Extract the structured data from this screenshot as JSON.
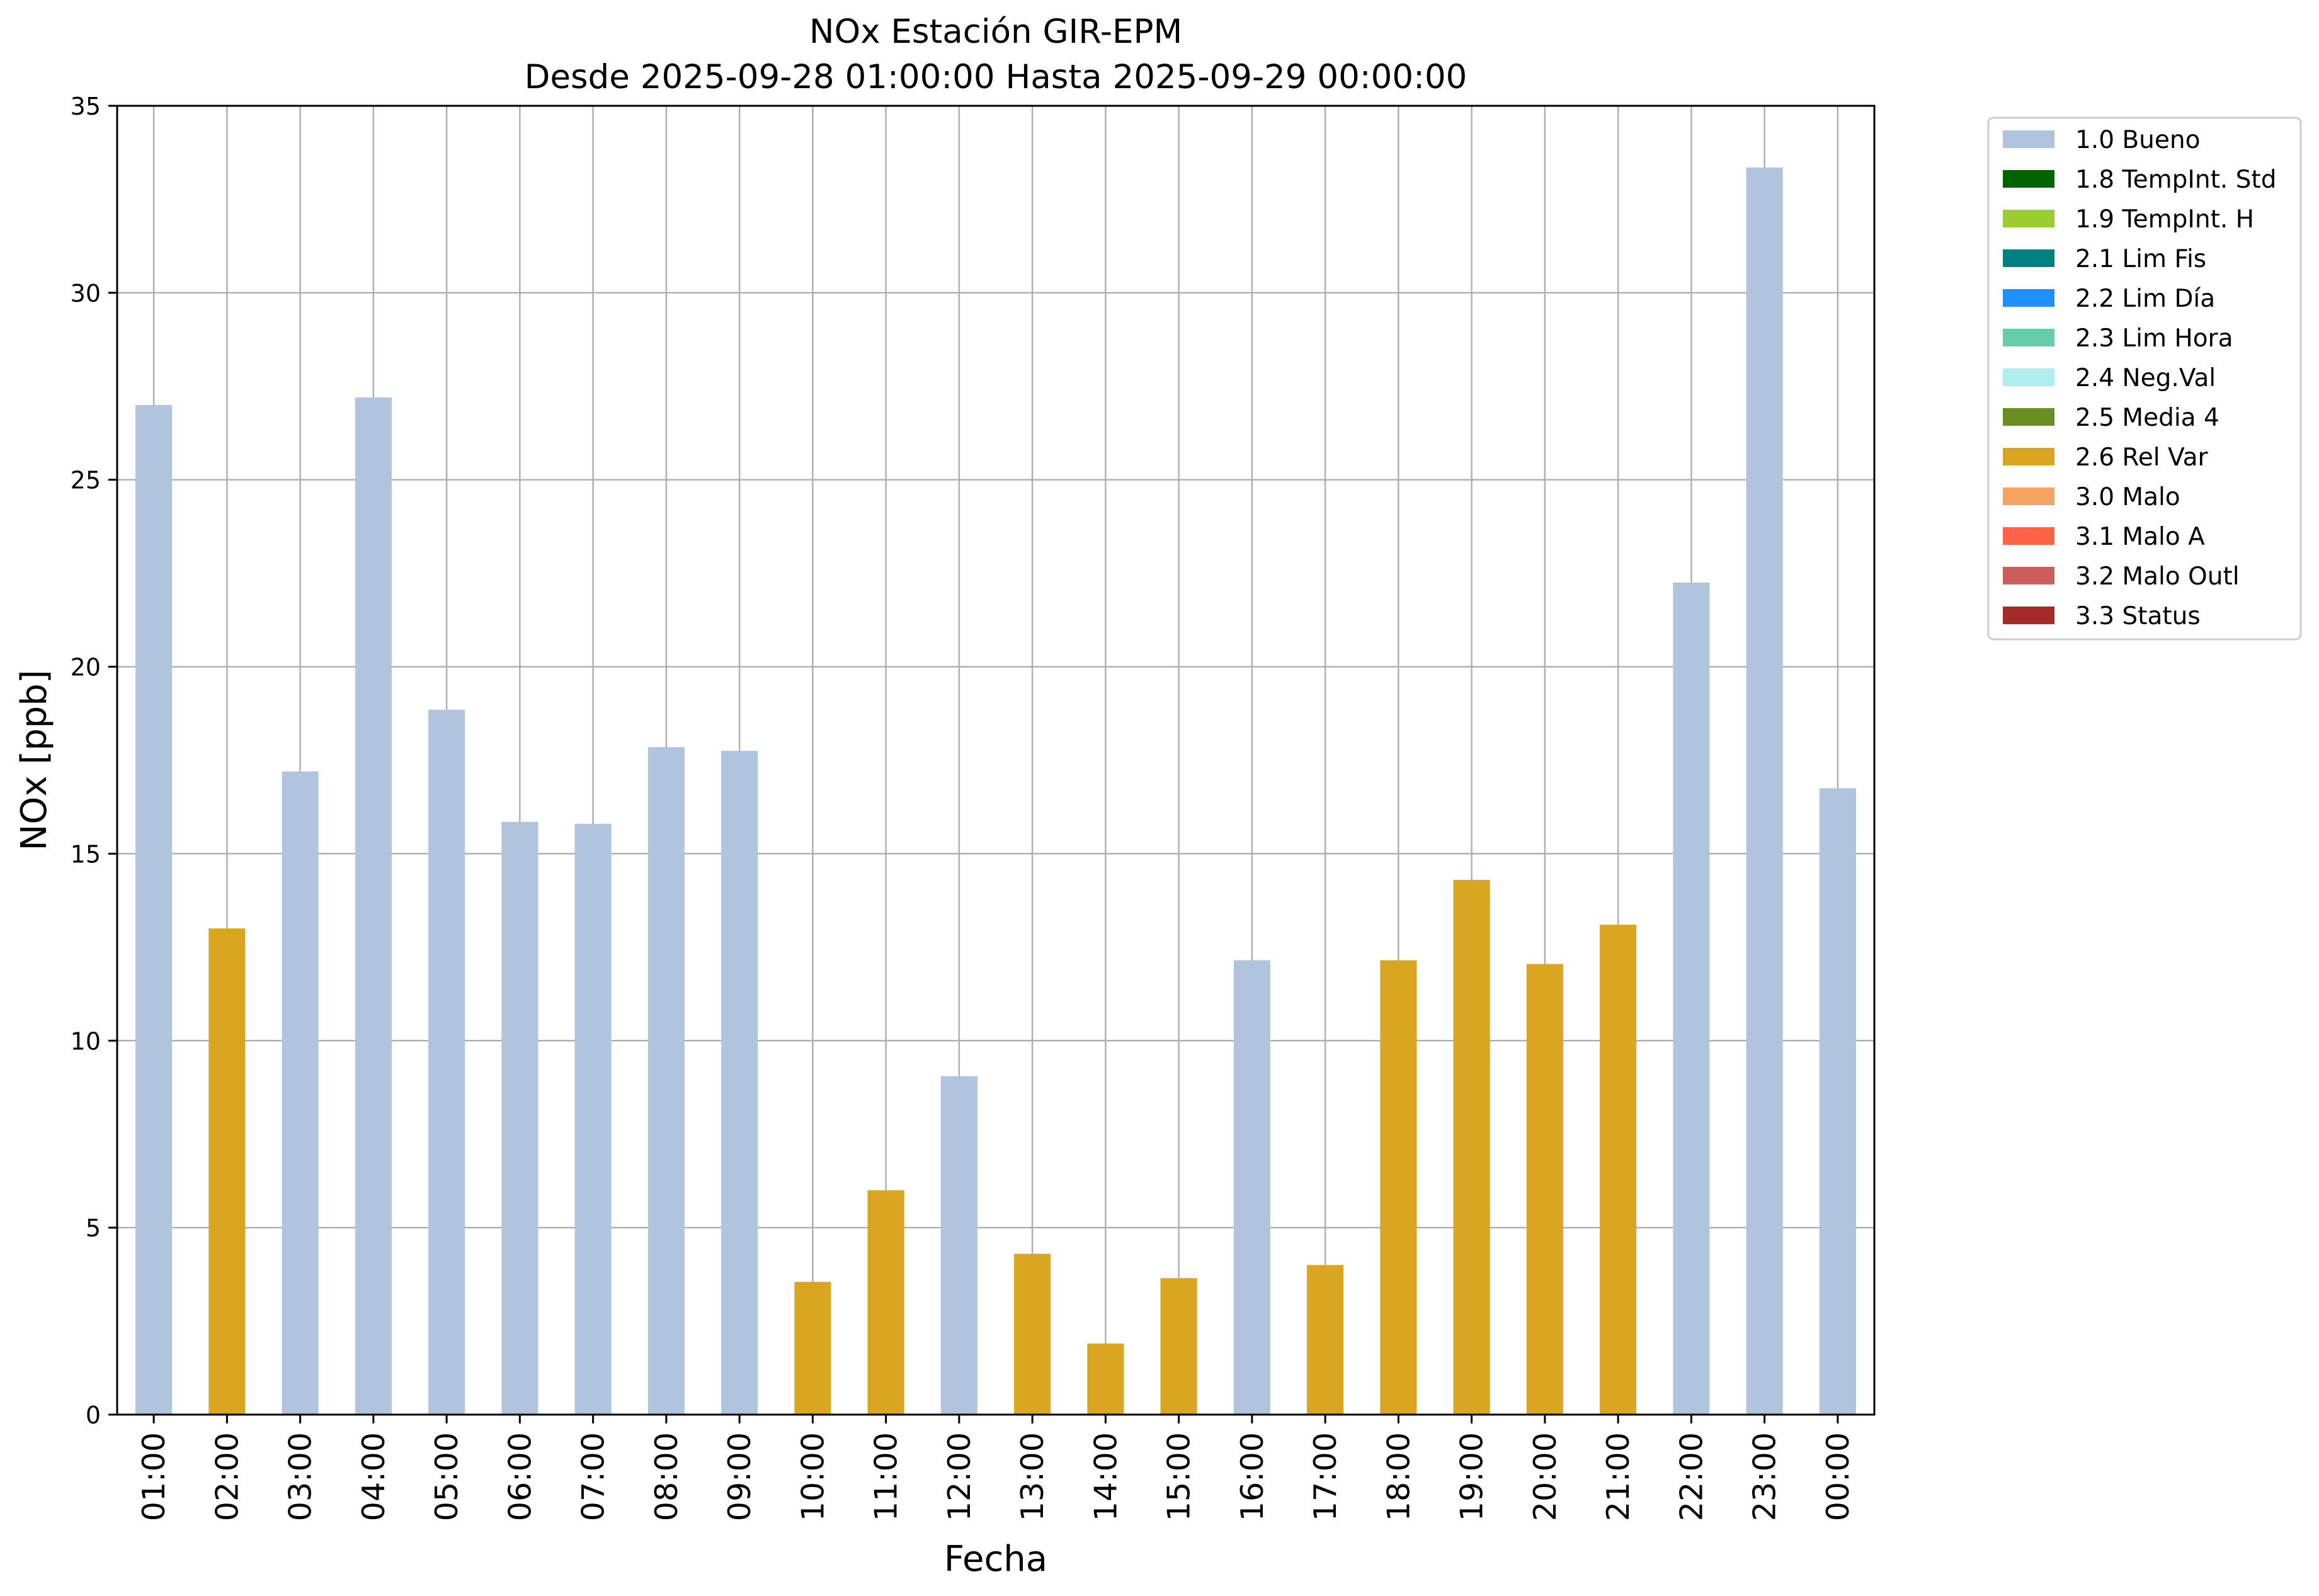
{
  "chart_data": {
    "type": "bar",
    "title": "NOx Estación GIR-EPM",
    "subtitle": "Desde 2025-09-28 01:00:00 Hasta 2025-09-29 00:00:00",
    "xlabel": "Fecha",
    "ylabel": "NOx [ppb]",
    "ylim": [
      0,
      35
    ],
    "yticks": [
      "0",
      "5",
      "10",
      "15",
      "20",
      "25",
      "30",
      "35"
    ],
    "grid": true,
    "legend_position": "outside-top-right",
    "categories": [
      "01:00",
      "02:00",
      "03:00",
      "04:00",
      "05:00",
      "06:00",
      "07:00",
      "08:00",
      "09:00",
      "10:00",
      "11:00",
      "12:00",
      "13:00",
      "14:00",
      "15:00",
      "16:00",
      "17:00",
      "18:00",
      "19:00",
      "20:00",
      "21:00",
      "22:00",
      "23:00",
      "00:00"
    ],
    "values": [
      27.0,
      13.0,
      17.2,
      27.2,
      18.85,
      15.85,
      15.8,
      17.85,
      17.75,
      3.55,
      6.0,
      9.05,
      4.3,
      1.9,
      3.65,
      12.15,
      4.0,
      12.15,
      14.3,
      12.05,
      13.1,
      22.25,
      33.35,
      16.75
    ],
    "flags": [
      "1.0 Bueno",
      "2.6 Rel Var",
      "1.0 Bueno",
      "1.0 Bueno",
      "1.0 Bueno",
      "1.0 Bueno",
      "1.0 Bueno",
      "1.0 Bueno",
      "1.0 Bueno",
      "2.6 Rel Var",
      "2.6 Rel Var",
      "1.0 Bueno",
      "2.6 Rel Var",
      "2.6 Rel Var",
      "2.6 Rel Var",
      "1.0 Bueno",
      "2.6 Rel Var",
      "2.6 Rel Var",
      "2.6 Rel Var",
      "2.6 Rel Var",
      "2.6 Rel Var",
      "1.0 Bueno",
      "1.0 Bueno",
      "1.0 Bueno"
    ],
    "legend": [
      {
        "label": "1.0 Bueno",
        "color": "#b0c4de"
      },
      {
        "label": "1.8 TempInt. Std",
        "color": "#006400"
      },
      {
        "label": "1.9 TempInt. H",
        "color": "#9acd32"
      },
      {
        "label": "2.1 Lim Fis",
        "color": "#008080"
      },
      {
        "label": "2.2 Lim Día",
        "color": "#1e90ff"
      },
      {
        "label": "2.3 Lim Hora",
        "color": "#66cdaa"
      },
      {
        "label": "2.4 Neg.Val",
        "color": "#afeeee"
      },
      {
        "label": "2.5 Media 4",
        "color": "#6b8e23"
      },
      {
        "label": "2.6 Rel Var",
        "color": "#daa520"
      },
      {
        "label": "3.0 Malo",
        "color": "#f4a460"
      },
      {
        "label": "3.1 Malo A",
        "color": "#ff6347"
      },
      {
        "label": "3.2 Malo Outl",
        "color": "#cd5c5c"
      },
      {
        "label": "3.3 Status",
        "color": "#a52a2a"
      }
    ]
  }
}
